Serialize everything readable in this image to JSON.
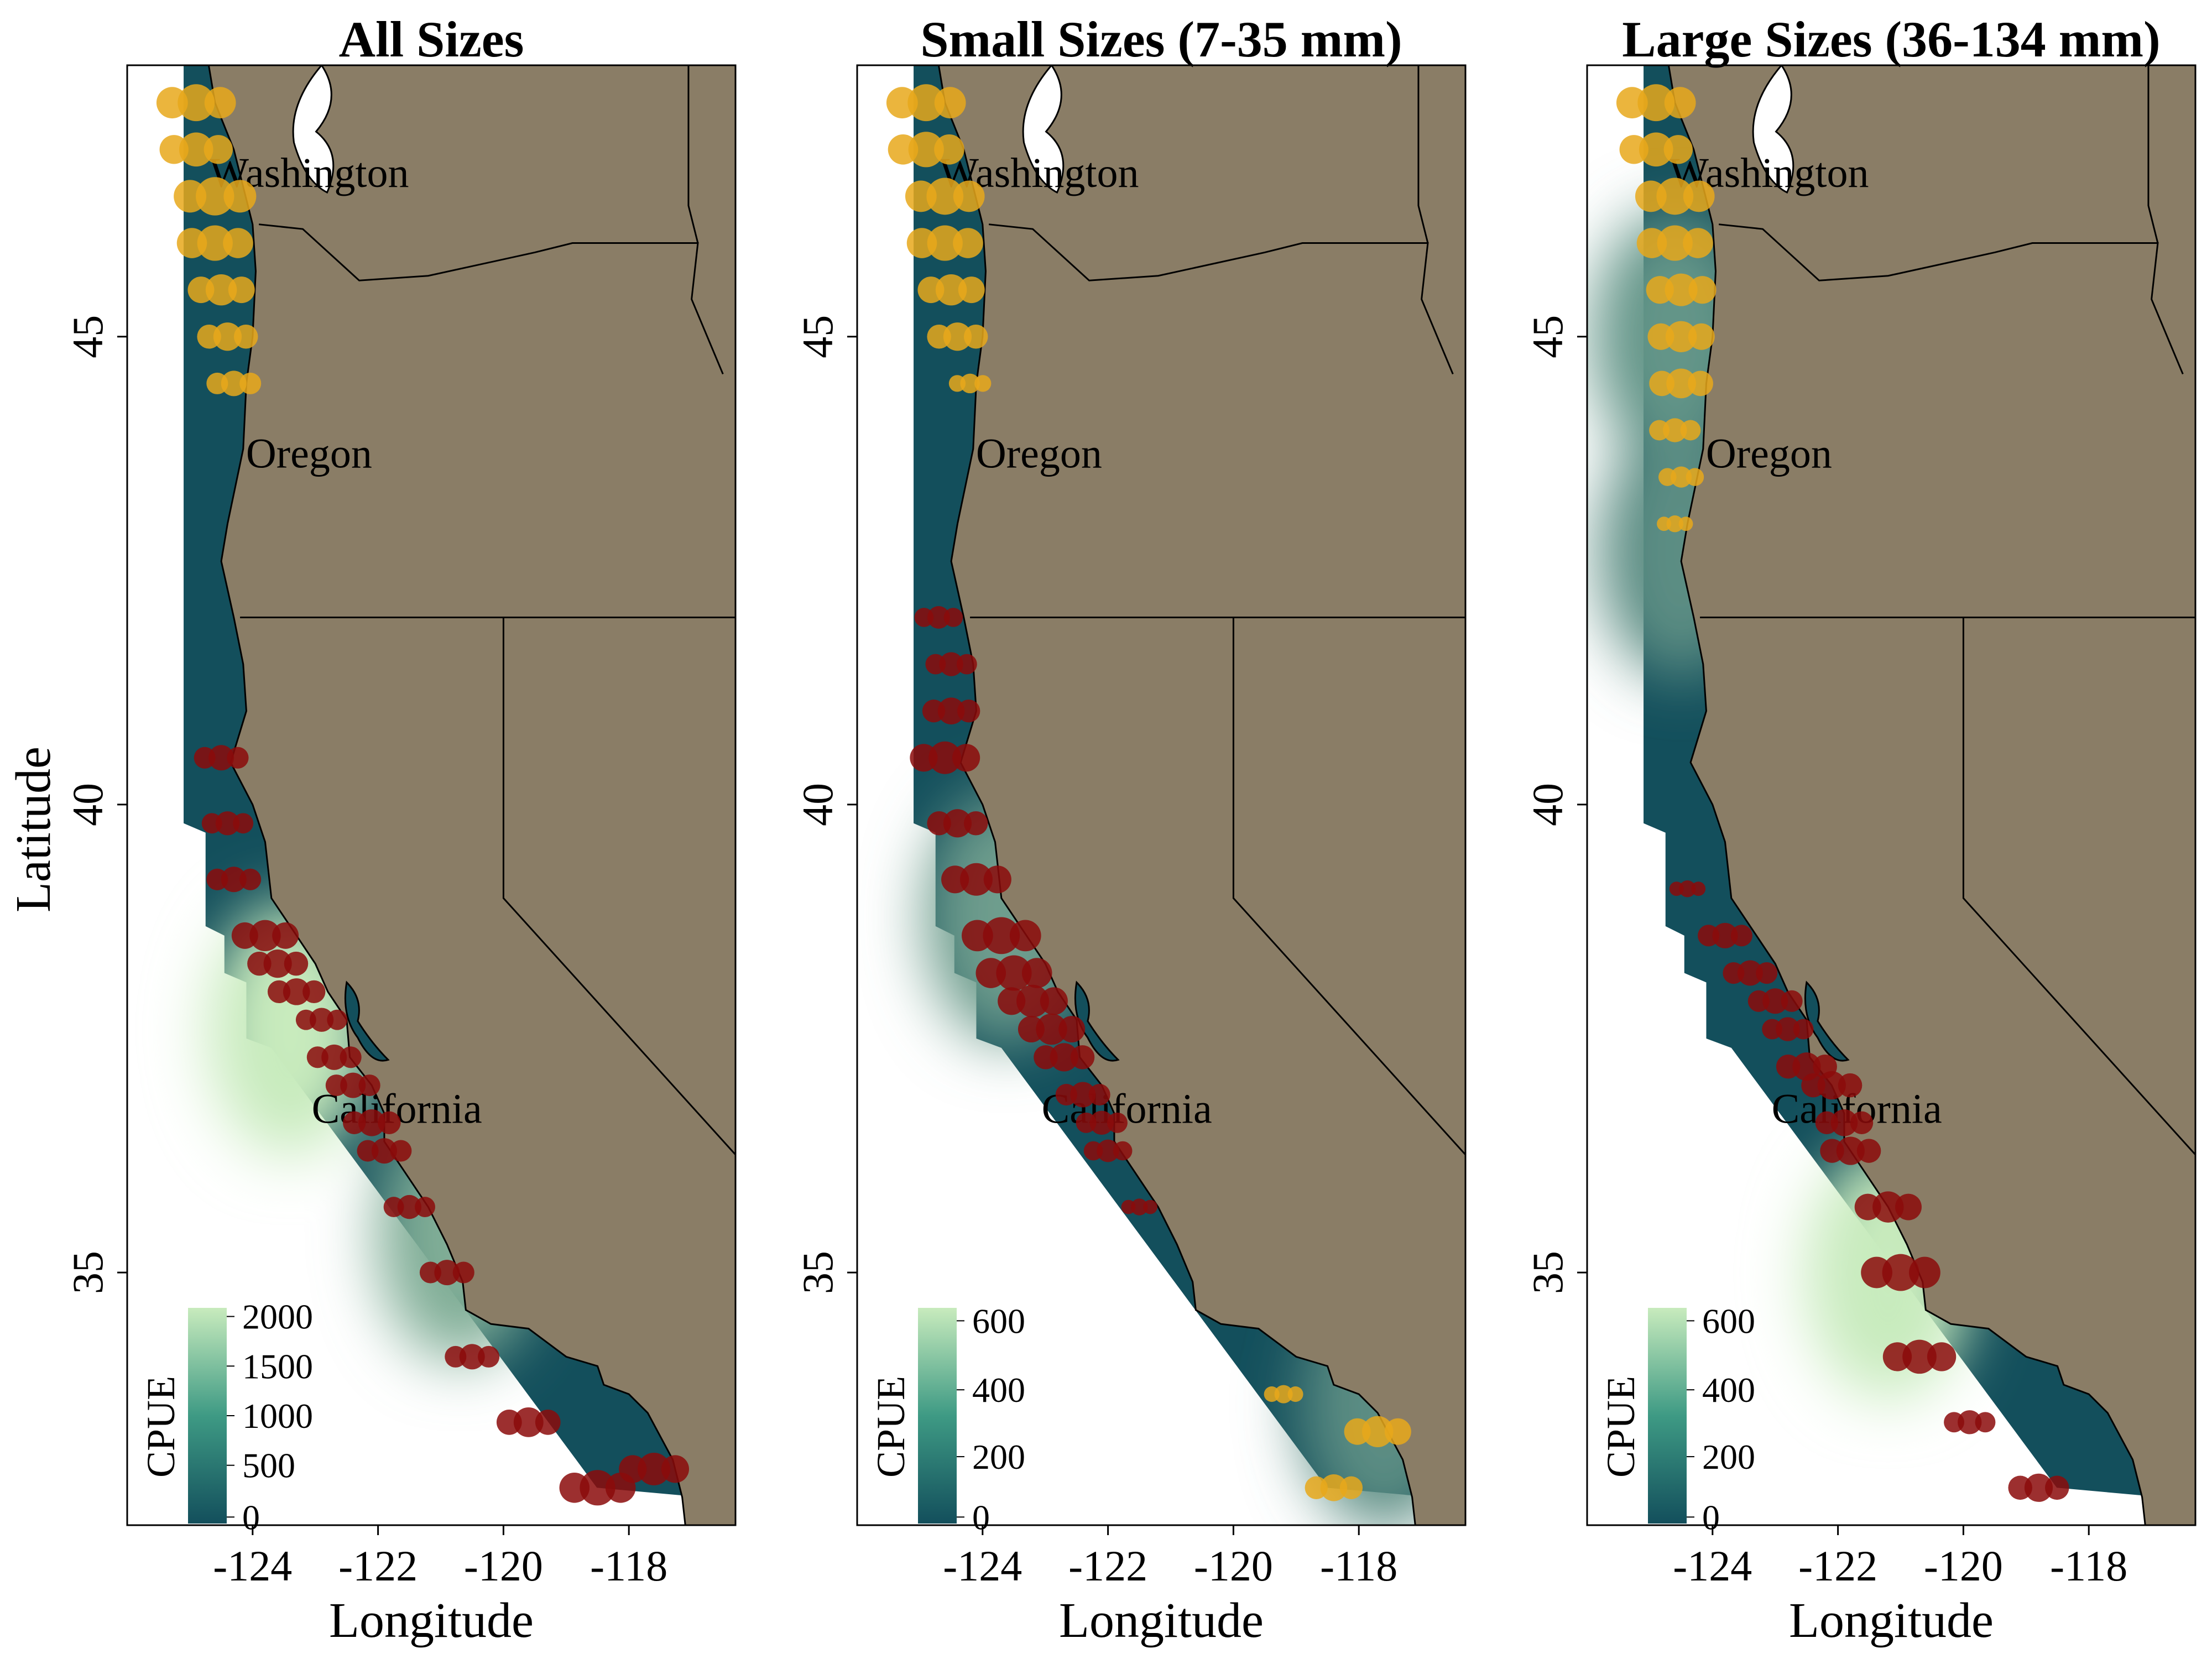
{
  "figure": {
    "x_axis_title": "Longitude",
    "y_axis_title": "Latitude",
    "x_ticks": [
      "-124",
      "-122",
      "-120",
      "-118"
    ],
    "y_ticks": [
      "45",
      "40",
      "35"
    ],
    "colors": {
      "land": "#8A7D66",
      "ocean_low": "#134f5c",
      "ocean_high": "#c8ebbd",
      "north_points": "#E8A81B",
      "south_points": "#8B0A0A"
    }
  },
  "panels": [
    {
      "title": "All Sizes",
      "legend": {
        "title": "CPUE",
        "ticks": [
          "2000",
          "1500",
          "1000",
          "500",
          "0"
        ]
      },
      "states": [
        "Washington",
        "Oregon",
        "California"
      ],
      "hotspots": [
        {
          "lat": 37.6,
          "lon": -123.4,
          "level": 1.0
        },
        {
          "lat": 35.4,
          "lon": -120.7,
          "level": 0.6
        }
      ]
    },
    {
      "title": "Small Sizes (7-35 mm)",
      "legend": {
        "title": "CPUE",
        "ticks": [
          "600",
          "400",
          "200",
          "0"
        ]
      },
      "states": [
        "Washington",
        "Oregon",
        "California"
      ],
      "hotspots": [
        {
          "lat": 38.8,
          "lon": -123.6,
          "level": 0.5
        },
        {
          "lat": 33.6,
          "lon": -117.6,
          "level": 0.4
        }
      ]
    },
    {
      "title": "Large Sizes (36-134 mm)",
      "legend": {
        "title": "CPUE",
        "ticks": [
          "600",
          "400",
          "200",
          "0"
        ]
      },
      "states": [
        "Washington",
        "Oregon",
        "California"
      ],
      "hotspots": [
        {
          "lat": 35.0,
          "lon": -121.2,
          "level": 1.0
        },
        {
          "lat": 45.0,
          "lon": -124.6,
          "level": 0.45
        },
        {
          "lat": 42.7,
          "lon": -124.5,
          "level": 0.4
        }
      ]
    }
  ],
  "chart_data": {
    "type": "scatter",
    "xlabel": "Longitude",
    "ylabel": "Latitude",
    "xlim": [
      -126.0,
      -116.3
    ],
    "ylim": [
      32.3,
      47.9
    ],
    "series": [
      {
        "panel": 0,
        "points": [
          {
            "lon": -124.9,
            "lat": 47.5,
            "size": 0.9,
            "group": "north"
          },
          {
            "lon": -124.9,
            "lat": 47.0,
            "size": 0.8,
            "group": "north"
          },
          {
            "lon": -124.6,
            "lat": 46.5,
            "size": 0.95,
            "group": "north"
          },
          {
            "lon": -124.6,
            "lat": 46.0,
            "size": 0.85,
            "group": "north"
          },
          {
            "lon": -124.5,
            "lat": 45.5,
            "size": 0.7,
            "group": "north"
          },
          {
            "lon": -124.4,
            "lat": 45.0,
            "size": 0.6,
            "group": "north"
          },
          {
            "lon": -124.3,
            "lat": 44.5,
            "size": 0.5,
            "group": "north"
          },
          {
            "lon": -124.5,
            "lat": 40.5,
            "size": 0.5,
            "group": "south"
          },
          {
            "lon": -124.4,
            "lat": 39.8,
            "size": 0.45,
            "group": "south"
          },
          {
            "lon": -124.3,
            "lat": 39.2,
            "size": 0.5,
            "group": "south"
          },
          {
            "lon": -123.8,
            "lat": 38.6,
            "size": 0.7,
            "group": "south"
          },
          {
            "lon": -123.6,
            "lat": 38.3,
            "size": 0.6,
            "group": "south"
          },
          {
            "lon": -123.3,
            "lat": 38.0,
            "size": 0.55,
            "group": "south"
          },
          {
            "lon": -122.9,
            "lat": 37.7,
            "size": 0.45,
            "group": "south"
          },
          {
            "lon": -122.7,
            "lat": 37.3,
            "size": 0.5,
            "group": "south"
          },
          {
            "lon": -122.4,
            "lat": 37.0,
            "size": 0.5,
            "group": "south"
          },
          {
            "lon": -122.1,
            "lat": 36.6,
            "size": 0.55,
            "group": "south"
          },
          {
            "lon": -121.9,
            "lat": 36.3,
            "size": 0.5,
            "group": "south"
          },
          {
            "lon": -121.5,
            "lat": 35.7,
            "size": 0.45,
            "group": "south"
          },
          {
            "lon": -120.9,
            "lat": 35.0,
            "size": 0.5,
            "group": "south"
          },
          {
            "lon": -120.5,
            "lat": 34.1,
            "size": 0.5,
            "group": "south"
          },
          {
            "lon": -119.6,
            "lat": 33.4,
            "size": 0.65,
            "group": "south"
          },
          {
            "lon": -118.5,
            "lat": 32.7,
            "size": 0.85,
            "group": "south"
          },
          {
            "lon": -117.6,
            "lat": 32.9,
            "size": 0.75,
            "group": "south"
          }
        ]
      },
      {
        "panel": 1,
        "points": [
          {
            "lon": -124.9,
            "lat": 47.5,
            "size": 0.9,
            "group": "north"
          },
          {
            "lon": -124.9,
            "lat": 47.0,
            "size": 0.85,
            "group": "north"
          },
          {
            "lon": -124.6,
            "lat": 46.5,
            "size": 0.9,
            "group": "north"
          },
          {
            "lon": -124.6,
            "lat": 46.0,
            "size": 0.85,
            "group": "north"
          },
          {
            "lon": -124.5,
            "lat": 45.5,
            "size": 0.7,
            "group": "north"
          },
          {
            "lon": -124.4,
            "lat": 45.0,
            "size": 0.6,
            "group": "north"
          },
          {
            "lon": -124.2,
            "lat": 44.5,
            "size": 0.3,
            "group": "north"
          },
          {
            "lon": -124.7,
            "lat": 42.0,
            "size": 0.4,
            "group": "south"
          },
          {
            "lon": -124.5,
            "lat": 41.5,
            "size": 0.45,
            "group": "south"
          },
          {
            "lon": -124.5,
            "lat": 41.0,
            "size": 0.55,
            "group": "south"
          },
          {
            "lon": -124.6,
            "lat": 40.5,
            "size": 0.75,
            "group": "south"
          },
          {
            "lon": -124.4,
            "lat": 39.8,
            "size": 0.6,
            "group": "south"
          },
          {
            "lon": -124.1,
            "lat": 39.2,
            "size": 0.75,
            "group": "south"
          },
          {
            "lon": -123.7,
            "lat": 38.6,
            "size": 0.9,
            "group": "south"
          },
          {
            "lon": -123.5,
            "lat": 38.2,
            "size": 0.85,
            "group": "south"
          },
          {
            "lon": -123.2,
            "lat": 37.9,
            "size": 0.75,
            "group": "south"
          },
          {
            "lon": -122.9,
            "lat": 37.6,
            "size": 0.7,
            "group": "south"
          },
          {
            "lon": -122.7,
            "lat": 37.3,
            "size": 0.6,
            "group": "south"
          },
          {
            "lon": -122.4,
            "lat": 36.9,
            "size": 0.5,
            "group": "south"
          },
          {
            "lon": -122.1,
            "lat": 36.6,
            "size": 0.45,
            "group": "south"
          },
          {
            "lon": -122.0,
            "lat": 36.3,
            "size": 0.4,
            "group": "south"
          },
          {
            "lon": -121.5,
            "lat": 35.7,
            "size": 0.2,
            "group": "south"
          },
          {
            "lon": -119.2,
            "lat": 33.7,
            "size": 0.25,
            "group": "north"
          },
          {
            "lon": -117.7,
            "lat": 33.3,
            "size": 0.7,
            "group": "north"
          },
          {
            "lon": -118.4,
            "lat": 32.7,
            "size": 0.55,
            "group": "north"
          }
        ]
      },
      {
        "panel": 2,
        "points": [
          {
            "lon": -124.9,
            "lat": 47.5,
            "size": 0.9,
            "group": "north"
          },
          {
            "lon": -124.9,
            "lat": 47.0,
            "size": 0.8,
            "group": "north"
          },
          {
            "lon": -124.6,
            "lat": 46.5,
            "size": 0.9,
            "group": "north"
          },
          {
            "lon": -124.6,
            "lat": 46.0,
            "size": 0.85,
            "group": "north"
          },
          {
            "lon": -124.5,
            "lat": 45.5,
            "size": 0.75,
            "group": "north"
          },
          {
            "lon": -124.5,
            "lat": 45.0,
            "size": 0.7,
            "group": "north"
          },
          {
            "lon": -124.5,
            "lat": 44.5,
            "size": 0.65,
            "group": "north"
          },
          {
            "lon": -124.6,
            "lat": 44.0,
            "size": 0.45,
            "group": "north"
          },
          {
            "lon": -124.5,
            "lat": 43.5,
            "size": 0.35,
            "group": "north"
          },
          {
            "lon": -124.6,
            "lat": 43.0,
            "size": 0.2,
            "group": "north"
          },
          {
            "lon": -124.4,
            "lat": 39.1,
            "size": 0.2,
            "group": "south"
          },
          {
            "lon": -123.8,
            "lat": 38.6,
            "size": 0.5,
            "group": "south"
          },
          {
            "lon": -123.4,
            "lat": 38.2,
            "size": 0.5,
            "group": "south"
          },
          {
            "lon": -123.0,
            "lat": 37.9,
            "size": 0.5,
            "group": "south"
          },
          {
            "lon": -122.8,
            "lat": 37.6,
            "size": 0.45,
            "group": "south"
          },
          {
            "lon": -122.5,
            "lat": 37.2,
            "size": 0.6,
            "group": "south"
          },
          {
            "lon": -122.1,
            "lat": 37.0,
            "size": 0.6,
            "group": "south"
          },
          {
            "lon": -121.9,
            "lat": 36.6,
            "size": 0.55,
            "group": "south"
          },
          {
            "lon": -121.8,
            "lat": 36.3,
            "size": 0.6,
            "group": "south"
          },
          {
            "lon": -121.2,
            "lat": 35.7,
            "size": 0.7,
            "group": "south"
          },
          {
            "lon": -121.0,
            "lat": 35.0,
            "size": 0.9,
            "group": "south"
          },
          {
            "lon": -120.7,
            "lat": 34.1,
            "size": 0.8,
            "group": "south"
          },
          {
            "lon": -119.9,
            "lat": 33.4,
            "size": 0.45,
            "group": "south"
          },
          {
            "lon": -118.8,
            "lat": 32.7,
            "size": 0.6,
            "group": "south"
          }
        ]
      }
    ]
  }
}
